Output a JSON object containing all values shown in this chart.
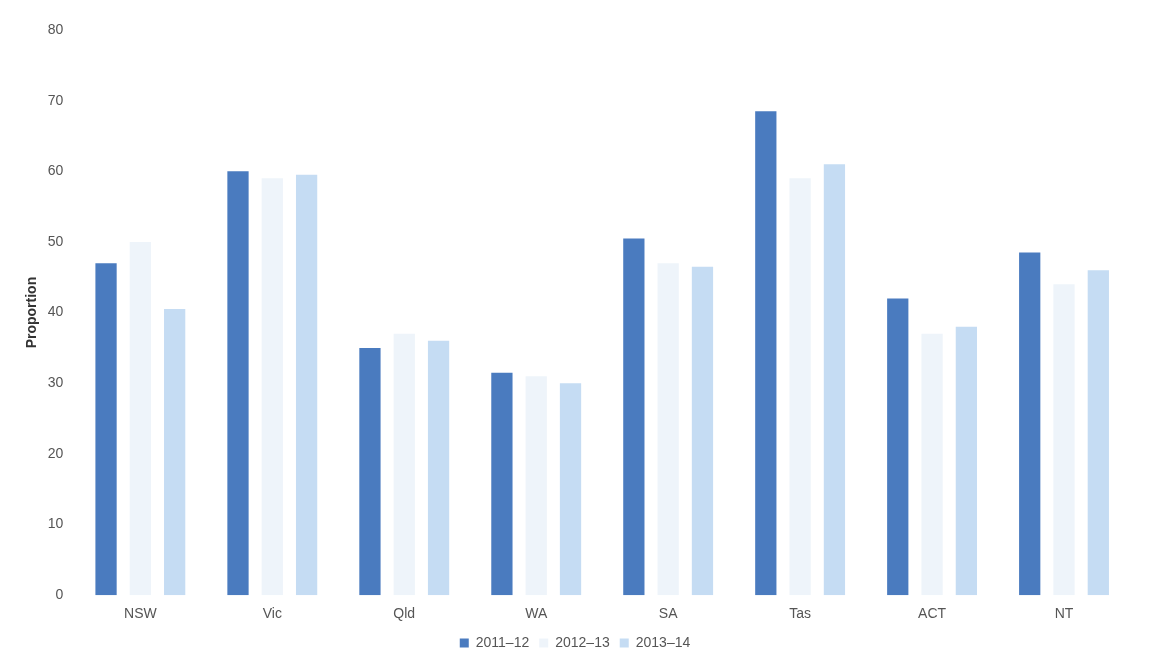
{
  "chart_data": {
    "type": "bar",
    "ylabel": "Proportion",
    "categories": [
      "NSW",
      "Vic",
      "Qld",
      "WA",
      "SA",
      "Tas",
      "ACT",
      "NT"
    ],
    "series": [
      {
        "name": "2011–12",
        "color": "#4a7bbf",
        "values": [
          47,
          60,
          35,
          31.5,
          50.5,
          68.5,
          42,
          48.5
        ]
      },
      {
        "name": "2012–13",
        "color": "#eef4fa",
        "values": [
          50,
          59,
          37,
          31,
          47,
          59,
          37,
          44
        ]
      },
      {
        "name": "2013–14",
        "color": "#c5dcf3",
        "values": [
          40.5,
          59.5,
          36,
          30,
          46.5,
          61,
          38,
          46
        ]
      }
    ],
    "ylim": [
      0,
      80
    ],
    "yticks": [
      0,
      10,
      20,
      30,
      40,
      50,
      60,
      70,
      80
    ],
    "grid": false,
    "legend": "bottom"
  }
}
